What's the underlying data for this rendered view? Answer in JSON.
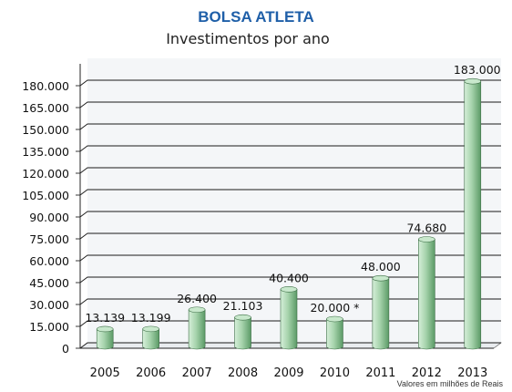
{
  "chart_data": {
    "type": "bar",
    "title": "BOLSA ATLETA",
    "subtitle": "Investimentos por ano",
    "note": "Valores em milhões de Reais",
    "categories": [
      "2005",
      "2006",
      "2007",
      "2008",
      "2009",
      "2010",
      "2011",
      "2012",
      "2013"
    ],
    "values": [
      13139,
      13199,
      26400,
      21103,
      40400,
      20000,
      48000,
      74680,
      183000
    ],
    "data_labels": [
      "13.139",
      "13.199",
      "26.400",
      "21.103",
      "40.400",
      "20.000 *",
      "48.000",
      "74.680",
      "183.000"
    ],
    "ylim": [
      0,
      195000
    ],
    "y_ticks": [
      0,
      15000,
      30000,
      45000,
      60000,
      75000,
      90000,
      105000,
      120000,
      135000,
      150000,
      165000,
      180000
    ],
    "y_tick_labels": [
      "0",
      "15.000",
      "30.000",
      "45.000",
      "60.000",
      "75.000",
      "90.000",
      "105.000",
      "120.000",
      "135.000",
      "150.000",
      "165.000",
      "180.000"
    ],
    "grid": true,
    "legend": "none",
    "colors": {
      "title": "#1f5fa8",
      "bar_light": "#d6efd9",
      "bar_mid": "#a6d3ac",
      "bar_dark": "#5b9a66",
      "bar_top": "#c8e8cc",
      "grid": "#1a1a1a",
      "wall": "#f4f6f8"
    }
  }
}
